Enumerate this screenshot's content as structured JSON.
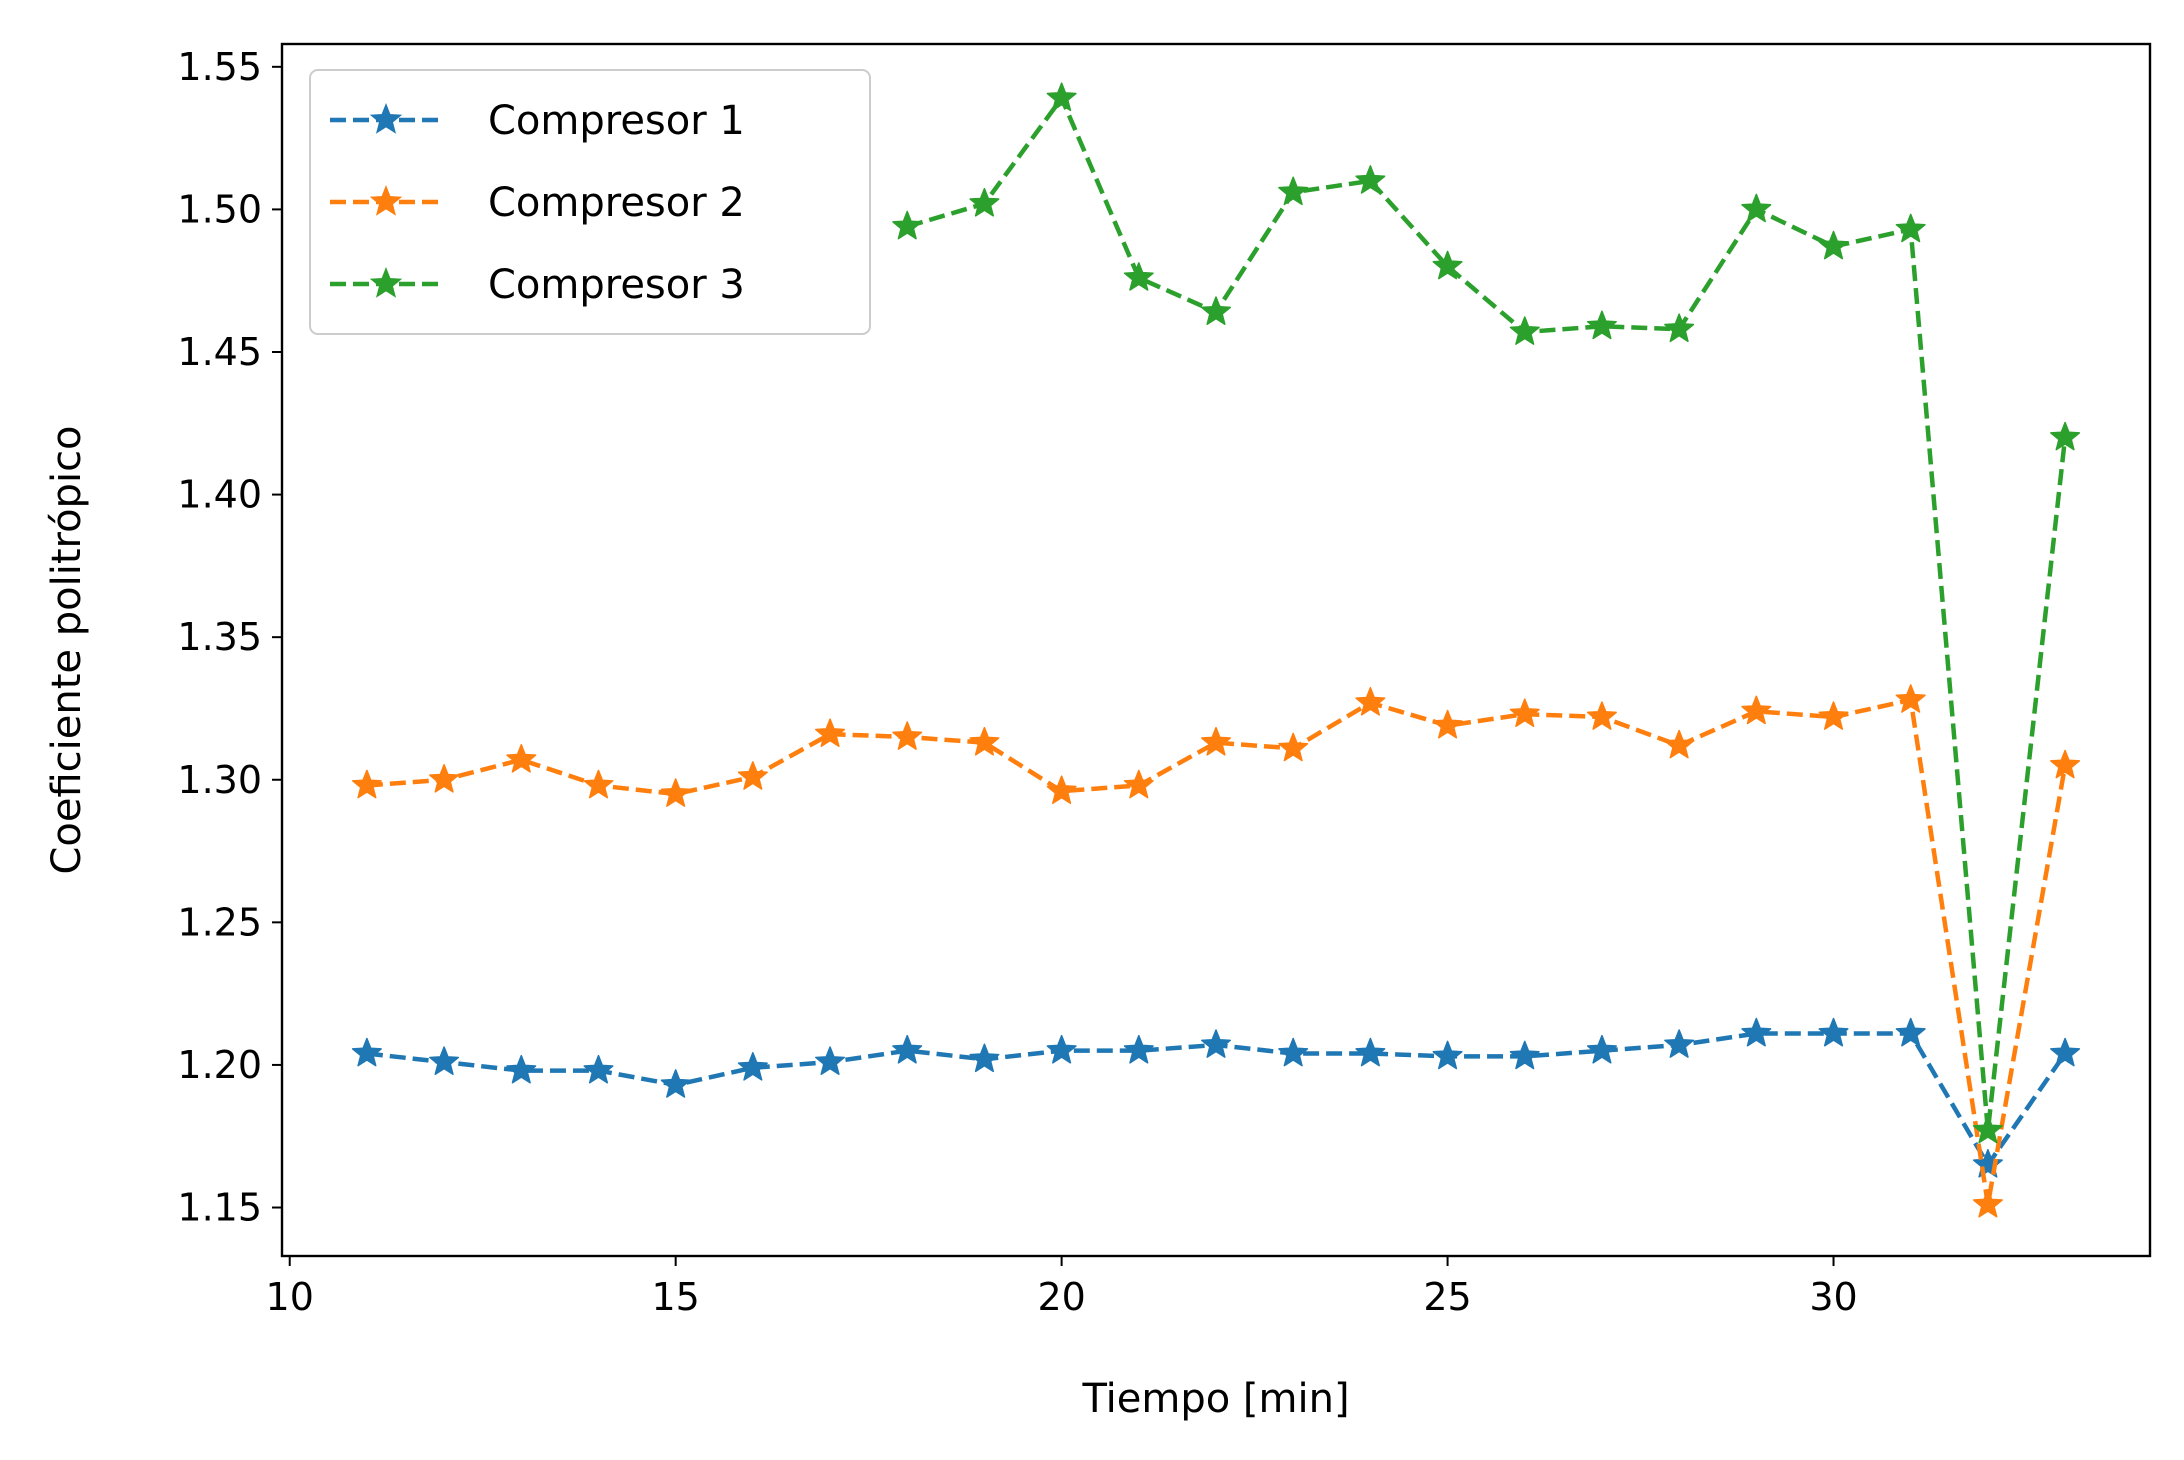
{
  "chart_data": {
    "type": "line",
    "title": "",
    "xlabel": "Tiempo [min]",
    "ylabel": "Coeficiente politrópico",
    "xlim": [
      9.9,
      34.1
    ],
    "ylim": [
      1.133,
      1.558
    ],
    "xticks": [
      10,
      15,
      20,
      25,
      30
    ],
    "xtick_labels": [
      "10",
      "15",
      "20",
      "25",
      "30"
    ],
    "yticks": [
      1.15,
      1.2,
      1.25,
      1.3,
      1.35,
      1.4,
      1.45,
      1.5,
      1.55
    ],
    "ytick_labels": [
      "1.15",
      "1.20",
      "1.25",
      "1.30",
      "1.35",
      "1.40",
      "1.45",
      "1.50",
      "1.55"
    ],
    "grid": false,
    "legend_position": "top-left",
    "series": [
      {
        "name": "Compresor 1",
        "color": "#1f77b4",
        "marker": "star",
        "linestyle": "dashed",
        "x": [
          11,
          12,
          13,
          14,
          15,
          16,
          17,
          18,
          19,
          20,
          21,
          22,
          23,
          24,
          25,
          26,
          27,
          28,
          29,
          30,
          31,
          32,
          33
        ],
        "y": [
          1.204,
          1.201,
          1.198,
          1.198,
          1.193,
          1.199,
          1.201,
          1.205,
          1.202,
          1.205,
          1.205,
          1.207,
          1.204,
          1.204,
          1.203,
          1.203,
          1.205,
          1.207,
          1.211,
          1.211,
          1.211,
          1.165,
          1.204
        ]
      },
      {
        "name": "Compresor 2",
        "color": "#ff7f0e",
        "marker": "star",
        "linestyle": "dashed",
        "x": [
          11,
          12,
          13,
          14,
          15,
          16,
          17,
          18,
          19,
          20,
          21,
          22,
          23,
          24,
          25,
          26,
          27,
          28,
          29,
          30,
          31,
          32,
          33
        ],
        "y": [
          1.298,
          1.3,
          1.307,
          1.298,
          1.295,
          1.301,
          1.316,
          1.315,
          1.313,
          1.296,
          1.298,
          1.313,
          1.311,
          1.327,
          1.319,
          1.323,
          1.322,
          1.312,
          1.324,
          1.322,
          1.328,
          1.151,
          1.305
        ]
      },
      {
        "name": "Compresor 3",
        "color": "#2ca02c",
        "marker": "star",
        "linestyle": "dashed",
        "x": [
          18,
          19,
          20,
          21,
          22,
          23,
          24,
          25,
          26,
          27,
          28,
          29,
          30,
          31,
          32,
          33
        ],
        "y": [
          1.494,
          1.502,
          1.539,
          1.476,
          1.464,
          1.506,
          1.51,
          1.48,
          1.457,
          1.459,
          1.458,
          1.5,
          1.487,
          1.493,
          1.177,
          1.42
        ]
      }
    ]
  }
}
